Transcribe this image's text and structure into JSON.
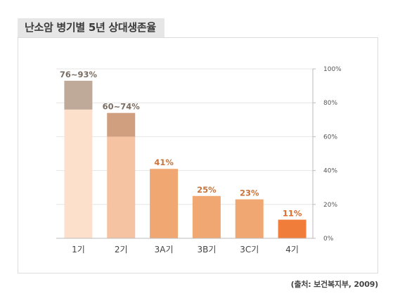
{
  "title": "난소암 병기별 5년 상대생존율",
  "source": "(출처: 보건복지부, 2009)",
  "chart_data": {
    "type": "bar",
    "title": "난소암 병기별 5년 상대생존율",
    "categories": [
      "1기",
      "2기",
      "3A기",
      "3B기",
      "3C기",
      "4기"
    ],
    "series": [
      {
        "values": [
          76,
          60,
          41,
          25,
          23,
          11
        ]
      },
      {
        "values": [
          17,
          14,
          0,
          0,
          0,
          0
        ]
      }
    ],
    "data_labels": [
      "76~93%",
      "60~74%",
      "41%",
      "25%",
      "23%",
      "11%"
    ],
    "yaxis": {
      "ticks": [
        "0%",
        "20%",
        "40%",
        "60%",
        "80%",
        "100%"
      ],
      "position": "right"
    },
    "ylim": [
      0,
      100
    ],
    "grid": true,
    "colors": {
      "base": [
        "#fde0cb",
        "#f5c3a1",
        "#f0a772",
        "#f0a772",
        "#f0a772",
        "#f07d3a"
      ],
      "range": [
        "#bfaa9a",
        "#cf9f80"
      ],
      "label": [
        "#7a6e64",
        "#7a6e64",
        "#c8743c",
        "#c8743c",
        "#c8743c",
        "#e06a26"
      ]
    }
  }
}
